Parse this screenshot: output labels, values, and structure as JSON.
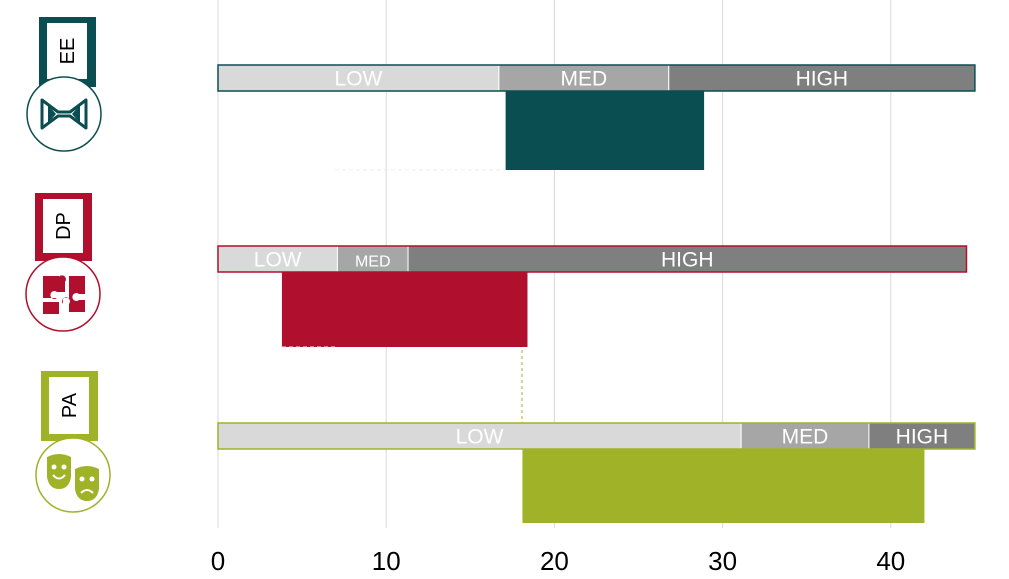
{
  "chart_data": {
    "type": "bar",
    "orientation": "horizontal",
    "x_ticks": [
      0,
      10,
      20,
      30,
      40
    ],
    "xlim": [
      0,
      45
    ],
    "grid": "vertical",
    "rows": [
      {
        "key": "EE",
        "label": "EE",
        "color": "#0b4e52",
        "icon": "bowtie-icon",
        "bands": [
          {
            "label": "LOW",
            "from": 0,
            "to": 16.7,
            "color": "#d9d9d9"
          },
          {
            "label": "MED",
            "from": 16.7,
            "to": 26.8,
            "color": "#a6a6a6"
          },
          {
            "label": "HIGH",
            "from": 26.8,
            "to": 45,
            "color": "#7f7f7f"
          }
        ],
        "range": [
          17.1,
          28.9
        ]
      },
      {
        "key": "DP",
        "label": "DP",
        "color": "#b0102d",
        "icon": "puzzle-icon",
        "bands": [
          {
            "label": "LOW",
            "from": 0,
            "to": 7.1,
            "color": "#d9d9d9"
          },
          {
            "label": "MED",
            "from": 7.1,
            "to": 11.3,
            "color": "#a6a6a6"
          },
          {
            "label": "HIGH",
            "from": 11.3,
            "to": 44.5,
            "color": "#7f7f7f"
          }
        ],
        "range": [
          3.8,
          18.4
        ]
      },
      {
        "key": "PA",
        "label": "PA",
        "color": "#a0b328",
        "icon": "theatre-masks-icon",
        "bands": [
          {
            "label": "LOW",
            "from": 0,
            "to": 31.1,
            "color": "#d9d9d9"
          },
          {
            "label": "MED",
            "from": 31.1,
            "to": 38.7,
            "color": "#a6a6a6"
          },
          {
            "label": "HIGH",
            "from": 38.7,
            "to": 45,
            "color": "#7f7f7f"
          }
        ],
        "range": [
          18.1,
          42.0
        ]
      }
    ]
  }
}
